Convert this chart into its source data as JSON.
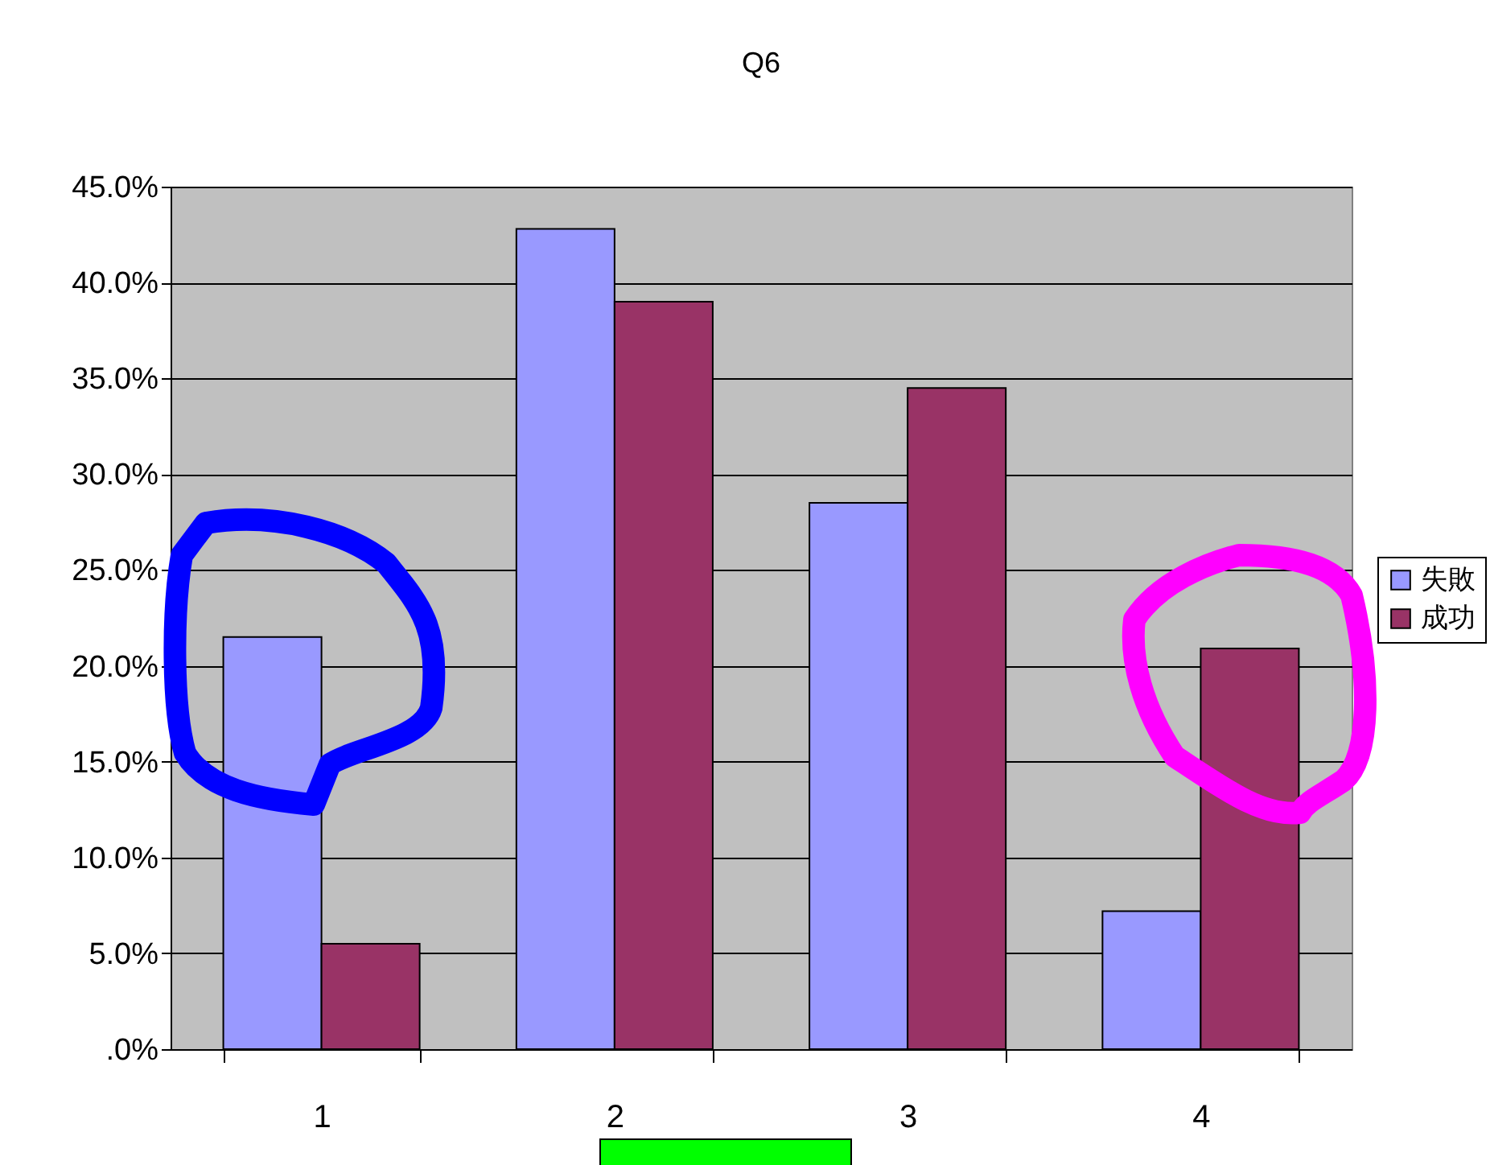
{
  "chart_data": {
    "type": "bar",
    "title": "Q6",
    "categories": [
      "1",
      "2",
      "3",
      "4"
    ],
    "series": [
      {
        "name": "失敗",
        "color": "#9999ff",
        "values": [
          21.5,
          42.8,
          28.5,
          7.2
        ]
      },
      {
        "name": "成功",
        "color": "#993366",
        "values": [
          5.5,
          39.0,
          34.5,
          20.9
        ]
      }
    ],
    "ylim": [
      0,
      45
    ],
    "yticks": [
      {
        "value": 0,
        "label": ".0%"
      },
      {
        "value": 5,
        "label": "5.0%"
      },
      {
        "value": 10,
        "label": "10.0%"
      },
      {
        "value": 15,
        "label": "15.0%"
      },
      {
        "value": 20,
        "label": "20.0%"
      },
      {
        "value": 25,
        "label": "25.0%"
      },
      {
        "value": 30,
        "label": "30.0%"
      },
      {
        "value": 35,
        "label": "35.0%"
      },
      {
        "value": 40,
        "label": "40.0%"
      },
      {
        "value": 45,
        "label": "45.0%"
      }
    ],
    "grid": "y",
    "legend": "right"
  }
}
